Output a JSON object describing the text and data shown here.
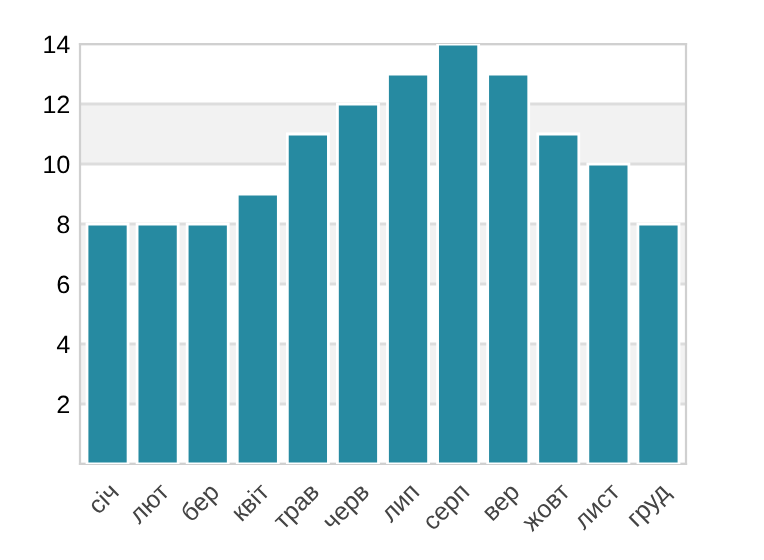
{
  "chart_data": {
    "type": "bar",
    "categories": [
      "січ",
      "лют",
      "бер",
      "квіт",
      "трав",
      "черв",
      "лип",
      "серп",
      "вер",
      "жовт",
      "лист",
      "груд"
    ],
    "values": [
      8,
      8,
      8,
      9,
      11,
      12,
      13,
      14,
      13,
      11,
      10,
      8
    ],
    "color": "#268aa1",
    "ylim": [
      0,
      14
    ],
    "yticks": [
      {
        "value": 0,
        "label": null
      },
      2,
      4,
      6,
      8,
      10,
      12,
      14
    ],
    "grid": "y",
    "bands": [
      {
        "axis": "y",
        "from": 2,
        "to": 4,
        "color": "#f2f2f2"
      },
      {
        "axis": "y",
        "from": 6,
        "to": 8,
        "color": "#f2f2f2"
      },
      {
        "axis": "y",
        "from": 10,
        "to": 12,
        "color": "#f2f2f2"
      }
    ]
  }
}
